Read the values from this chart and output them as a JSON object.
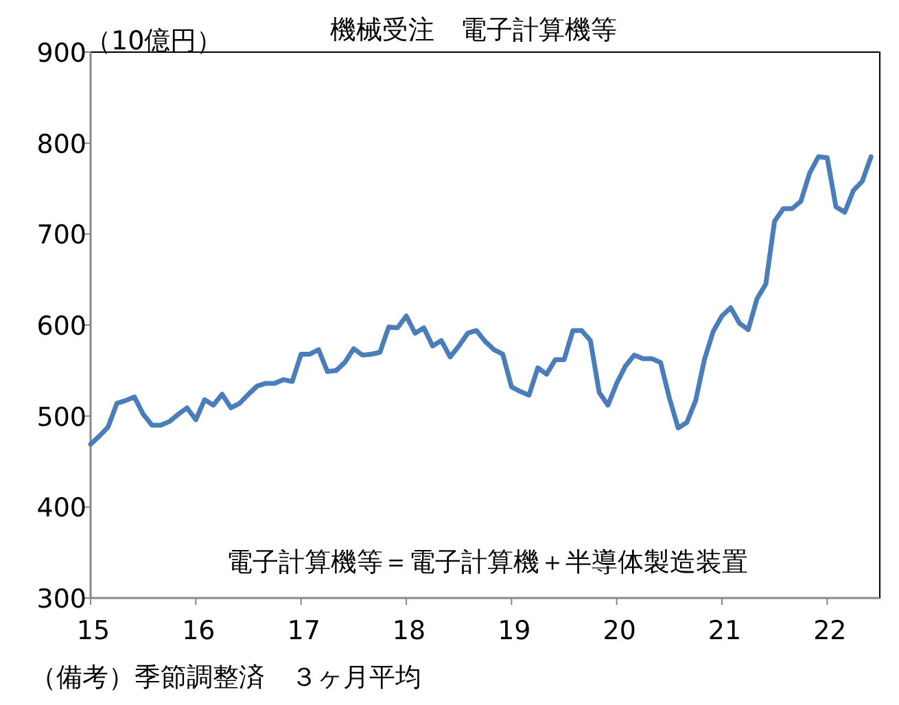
{
  "chart_data": {
    "type": "line",
    "title": "機械受注　電子計算機等",
    "ylabel": "（10億円）",
    "x": [
      "2015-01",
      "2015-02",
      "2015-03",
      "2015-04",
      "2015-05",
      "2015-06",
      "2015-07",
      "2015-08",
      "2015-09",
      "2015-10",
      "2015-11",
      "2015-12",
      "2016-01",
      "2016-02",
      "2016-03",
      "2016-04",
      "2016-05",
      "2016-06",
      "2016-07",
      "2016-08",
      "2016-09",
      "2016-10",
      "2016-11",
      "2016-12",
      "2017-01",
      "2017-02",
      "2017-03",
      "2017-04",
      "2017-05",
      "2017-06",
      "2017-07",
      "2017-08",
      "2017-09",
      "2017-10",
      "2017-11",
      "2017-12",
      "2018-01",
      "2018-02",
      "2018-03",
      "2018-04",
      "2018-05",
      "2018-06",
      "2018-07",
      "2018-08",
      "2018-09",
      "2018-10",
      "2018-11",
      "2018-12",
      "2019-01",
      "2019-02",
      "2019-03",
      "2019-04",
      "2019-05",
      "2019-06",
      "2019-07",
      "2019-08",
      "2019-09",
      "2019-10",
      "2019-11",
      "2019-12",
      "2020-01",
      "2020-02",
      "2020-03",
      "2020-04",
      "2020-05",
      "2020-06",
      "2020-07",
      "2020-08",
      "2020-09",
      "2020-10",
      "2020-11",
      "2020-12",
      "2021-01",
      "2021-02",
      "2021-03",
      "2021-04",
      "2021-05",
      "2021-06",
      "2021-07",
      "2021-08",
      "2021-09",
      "2021-10",
      "2021-11",
      "2021-12",
      "2022-01",
      "2022-02",
      "2022-03",
      "2022-04",
      "2022-05",
      "2022-06"
    ],
    "series": [
      {
        "color": "#4a7ebb",
        "values": [
          469,
          478,
          488,
          514,
          517,
          521,
          502,
          490,
          490,
          494,
          502,
          509,
          496,
          518,
          512,
          524,
          509,
          514,
          524,
          533,
          536,
          536,
          540,
          538,
          568,
          568,
          573,
          549,
          550,
          559,
          574,
          567,
          568,
          570,
          598,
          597,
          610,
          591,
          597,
          577,
          583,
          565,
          577,
          591,
          594,
          582,
          573,
          568,
          532,
          527,
          523,
          553,
          546,
          562,
          562,
          594,
          594,
          583,
          526,
          512,
          536,
          555,
          567,
          563,
          563,
          559,
          520,
          487,
          493,
          517,
          562,
          593,
          610,
          619,
          602,
          595,
          629,
          645,
          714,
          728,
          728,
          736,
          767,
          785,
          784,
          730,
          724,
          748,
          758,
          785
        ]
      }
    ],
    "xlim": [
      "2015-01",
      "2022-07"
    ],
    "xticks": [
      {
        "value": "2015-01",
        "label": "15"
      },
      {
        "value": "2016-01",
        "label": "16"
      },
      {
        "value": "2017-01",
        "label": "17"
      },
      {
        "value": "2018-01",
        "label": "18"
      },
      {
        "value": "2019-01",
        "label": "19"
      },
      {
        "value": "2020-01",
        "label": "20"
      },
      {
        "value": "2021-01",
        "label": "21"
      },
      {
        "value": "2022-01",
        "label": "22"
      }
    ],
    "ylim": [
      300,
      900
    ],
    "yticks": [
      300,
      400,
      500,
      600,
      700,
      800,
      900
    ],
    "grid": false,
    "marker": "none",
    "line_style": "solid",
    "annotations": [
      "電子計算機等＝電子計算機＋半導体製造装置",
      "（備考）季節調整済　３ヶ月平均"
    ]
  }
}
